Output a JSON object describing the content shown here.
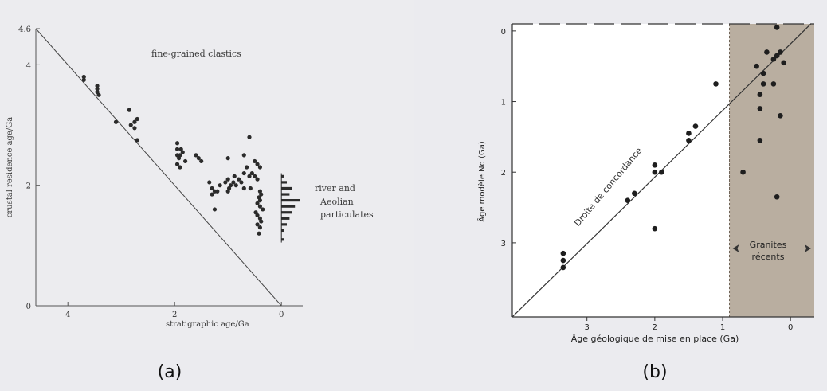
{
  "panel_labels": [
    "(a)",
    "(b)"
  ],
  "colors": {
    "ink": "#2b2b2b",
    "axis": "#555555",
    "shade": "#b9aea0",
    "background": "#ebebef"
  },
  "chart_data": [
    {
      "type": "scatter",
      "panel": "(a)",
      "title": "",
      "xlabel": "stratigraphic age/Ga",
      "ylabel": "crustal residence age/Ga",
      "x_ticks": [
        "4",
        "2",
        "0"
      ],
      "y_ticks": [
        "0",
        "2",
        "4",
        "4.6"
      ],
      "xlim": [
        4.6,
        -0.4
      ],
      "ylim": [
        0,
        4.6
      ],
      "x_reversed": true,
      "grid": false,
      "annotations": [
        "fine-grained clastics",
        "river and",
        "Aeolian",
        "particulates"
      ],
      "reference_line": {
        "from": [
          4.6,
          4.6
        ],
        "to": [
          0,
          0
        ]
      },
      "points": [
        [
          3.7,
          3.75
        ],
        [
          3.7,
          3.8
        ],
        [
          3.45,
          3.6
        ],
        [
          3.45,
          3.55
        ],
        [
          3.45,
          3.65
        ],
        [
          3.42,
          3.5
        ],
        [
          3.1,
          3.05
        ],
        [
          2.85,
          3.25
        ],
        [
          2.82,
          3.0
        ],
        [
          2.75,
          3.05
        ],
        [
          2.7,
          3.1
        ],
        [
          2.75,
          2.95
        ],
        [
          2.7,
          2.75
        ],
        [
          1.95,
          2.7
        ],
        [
          1.95,
          2.6
        ],
        [
          1.95,
          2.5
        ],
        [
          1.9,
          2.5
        ],
        [
          1.92,
          2.45
        ],
        [
          1.88,
          2.6
        ],
        [
          1.85,
          2.55
        ],
        [
          1.95,
          2.35
        ],
        [
          1.9,
          2.3
        ],
        [
          1.8,
          2.4
        ],
        [
          1.6,
          2.5
        ],
        [
          1.55,
          2.45
        ],
        [
          1.5,
          2.4
        ],
        [
          1.35,
          2.05
        ],
        [
          1.3,
          1.95
        ],
        [
          1.3,
          1.85
        ],
        [
          1.25,
          1.9
        ],
        [
          1.2,
          1.9
        ],
        [
          1.15,
          2.0
        ],
        [
          1.25,
          1.6
        ],
        [
          1.05,
          2.05
        ],
        [
          1.0,
          2.1
        ],
        [
          0.98,
          1.95
        ],
        [
          0.95,
          2.0
        ],
        [
          0.9,
          2.05
        ],
        [
          0.88,
          2.15
        ],
        [
          0.85,
          2.0
        ],
        [
          0.8,
          2.1
        ],
        [
          0.75,
          2.05
        ],
        [
          0.7,
          2.2
        ],
        [
          0.7,
          1.95
        ],
        [
          0.65,
          2.3
        ],
        [
          0.6,
          2.15
        ],
        [
          0.58,
          1.95
        ],
        [
          1.0,
          1.9
        ],
        [
          1.0,
          2.45
        ],
        [
          0.7,
          2.5
        ],
        [
          0.5,
          2.4
        ],
        [
          0.45,
          2.35
        ],
        [
          0.4,
          2.3
        ],
        [
          0.55,
          2.2
        ],
        [
          0.5,
          2.15
        ],
        [
          0.45,
          2.1
        ],
        [
          0.6,
          2.8
        ],
        [
          0.4,
          1.9
        ],
        [
          0.38,
          1.85
        ],
        [
          0.42,
          1.8
        ],
        [
          0.4,
          1.75
        ],
        [
          0.45,
          1.7
        ],
        [
          0.4,
          1.65
        ],
        [
          0.35,
          1.6
        ],
        [
          0.48,
          1.55
        ],
        [
          0.45,
          1.5
        ],
        [
          0.4,
          1.45
        ],
        [
          0.38,
          1.4
        ],
        [
          0.45,
          1.35
        ],
        [
          0.4,
          1.3
        ],
        [
          0.42,
          1.2
        ]
      ],
      "histogram": {
        "x_at": 0,
        "bins": [
          {
            "y": 2.15,
            "count": 1
          },
          {
            "y": 2.05,
            "count": 2
          },
          {
            "y": 1.95,
            "count": 4
          },
          {
            "y": 1.85,
            "count": 3
          },
          {
            "y": 1.75,
            "count": 7
          },
          {
            "y": 1.65,
            "count": 5
          },
          {
            "y": 1.55,
            "count": 4
          },
          {
            "y": 1.45,
            "count": 3
          },
          {
            "y": 1.35,
            "count": 2
          },
          {
            "y": 1.25,
            "count": 1
          },
          {
            "y": 1.1,
            "count": 1
          }
        ]
      }
    },
    {
      "type": "scatter",
      "panel": "(b)",
      "title": "",
      "xlabel": "Âge géologique de mise en place (Ga)",
      "ylabel": "Âge modèle Nd (Ga)",
      "x_ticks": [
        "3",
        "2",
        "1",
        "0"
      ],
      "y_ticks": [
        "0",
        "1",
        "2",
        "3"
      ],
      "xlim": [
        4.1,
        -0.35
      ],
      "ylim": [
        4.05,
        -0.1
      ],
      "x_reversed": true,
      "y_reversed": true,
      "grid": false,
      "annotations": [
        "Droite de concordance",
        "Granites",
        "récents"
      ],
      "shaded_region": {
        "x_from": 0.9,
        "x_to": -0.35
      },
      "reference_line": {
        "from": [
          4.1,
          4.05
        ],
        "to": [
          -0.3,
          -0.1
        ]
      },
      "points": [
        [
          3.35,
          3.15
        ],
        [
          3.35,
          3.25
        ],
        [
          3.35,
          3.35
        ],
        [
          2.4,
          2.4
        ],
        [
          2.3,
          2.3
        ],
        [
          2.0,
          1.9
        ],
        [
          2.0,
          2.0
        ],
        [
          1.9,
          2.0
        ],
        [
          2.0,
          2.8
        ],
        [
          1.5,
          1.45
        ],
        [
          1.5,
          1.55
        ],
        [
          1.4,
          1.35
        ],
        [
          1.1,
          0.75
        ],
        [
          0.2,
          -0.05
        ],
        [
          0.35,
          0.3
        ],
        [
          0.5,
          0.5
        ],
        [
          0.4,
          0.6
        ],
        [
          0.2,
          0.35
        ],
        [
          0.25,
          0.4
        ],
        [
          0.15,
          0.3
        ],
        [
          0.1,
          0.45
        ],
        [
          0.4,
          0.75
        ],
        [
          0.25,
          0.75
        ],
        [
          0.45,
          0.9
        ],
        [
          0.45,
          1.1
        ],
        [
          0.15,
          1.2
        ],
        [
          0.45,
          1.55
        ],
        [
          0.7,
          2.0
        ],
        [
          0.2,
          2.35
        ]
      ]
    }
  ]
}
